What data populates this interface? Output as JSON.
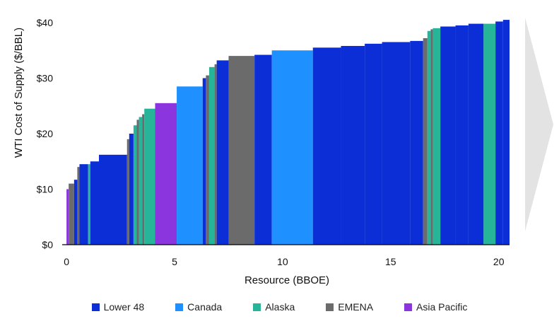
{
  "chart_data": {
    "type": "bar",
    "title": "",
    "xlabel": "Resource (BBOE)",
    "ylabel": "WTI Cost of Supply ($/BBL)",
    "xlim": [
      -0.2,
      20.5
    ],
    "ylim": [
      0,
      40
    ],
    "x_ticks": [
      {
        "value": 0,
        "label": "0"
      },
      {
        "value": 5,
        "label": "5"
      },
      {
        "value": 10,
        "label": "10"
      },
      {
        "value": 15,
        "label": "15"
      },
      {
        "value": 20,
        "label": "20"
      }
    ],
    "y_ticks": [
      {
        "value": 0,
        "label": "$0"
      },
      {
        "value": 10,
        "label": "$10"
      },
      {
        "value": 20,
        "label": "$20"
      },
      {
        "value": 30,
        "label": "$30"
      },
      {
        "value": 40,
        "label": "$40"
      }
    ],
    "grid": false,
    "legend_position": "bottom",
    "series": [
      {
        "name": "Lower 48",
        "color": "#0c2ed6"
      },
      {
        "name": "Canada",
        "color": "#1e90ff"
      },
      {
        "name": "Alaska",
        "color": "#27b59a"
      },
      {
        "name": "EMENA",
        "color": "#6b6b6b"
      },
      {
        "name": "Asia Pacific",
        "color": "#8a35dd"
      }
    ],
    "bars": [
      {
        "x0": 0.0,
        "x1": 0.1,
        "value": 10.0,
        "series": "Asia Pacific"
      },
      {
        "x0": 0.1,
        "x1": 0.35,
        "value": 11.0,
        "series": "EMENA"
      },
      {
        "x0": 0.35,
        "x1": 0.5,
        "value": 11.7,
        "series": "Lower 48"
      },
      {
        "x0": 0.5,
        "x1": 0.6,
        "value": 14.0,
        "series": "EMENA"
      },
      {
        "x0": 0.6,
        "x1": 1.0,
        "value": 14.5,
        "series": "Lower 48"
      },
      {
        "x0": 1.0,
        "x1": 1.1,
        "value": 14.5,
        "series": "Alaska"
      },
      {
        "x0": 1.1,
        "x1": 1.5,
        "value": 15.0,
        "series": "Lower 48"
      },
      {
        "x0": 1.5,
        "x1": 2.8,
        "value": 16.2,
        "series": "Lower 48"
      },
      {
        "x0": 2.8,
        "x1": 2.9,
        "value": 19.0,
        "series": "EMENA"
      },
      {
        "x0": 2.9,
        "x1": 3.1,
        "value": 20.0,
        "series": "Lower 48"
      },
      {
        "x0": 3.1,
        "x1": 3.25,
        "value": 21.5,
        "series": "Alaska"
      },
      {
        "x0": 3.25,
        "x1": 3.35,
        "value": 22.5,
        "series": "EMENA"
      },
      {
        "x0": 3.35,
        "x1": 3.5,
        "value": 23.0,
        "series": "Alaska"
      },
      {
        "x0": 3.5,
        "x1": 3.6,
        "value": 23.5,
        "series": "EMENA"
      },
      {
        "x0": 3.6,
        "x1": 4.1,
        "value": 24.5,
        "series": "Alaska"
      },
      {
        "x0": 4.1,
        "x1": 5.1,
        "value": 25.5,
        "series": "Asia Pacific"
      },
      {
        "x0": 5.1,
        "x1": 6.3,
        "value": 28.5,
        "series": "Canada"
      },
      {
        "x0": 6.3,
        "x1": 6.45,
        "value": 30.0,
        "series": "Lower 48"
      },
      {
        "x0": 6.45,
        "x1": 6.6,
        "value": 30.5,
        "series": "EMENA"
      },
      {
        "x0": 6.6,
        "x1": 6.85,
        "value": 32.0,
        "series": "Alaska"
      },
      {
        "x0": 6.85,
        "x1": 6.95,
        "value": 32.5,
        "series": "EMENA"
      },
      {
        "x0": 6.95,
        "x1": 7.5,
        "value": 33.2,
        "series": "Lower 48"
      },
      {
        "x0": 7.5,
        "x1": 8.7,
        "value": 34.0,
        "series": "EMENA"
      },
      {
        "x0": 8.7,
        "x1": 9.5,
        "value": 34.2,
        "series": "Lower 48"
      },
      {
        "x0": 9.5,
        "x1": 11.4,
        "value": 35.0,
        "series": "Canada"
      },
      {
        "x0": 11.4,
        "x1": 12.7,
        "value": 35.5,
        "series": "Lower 48"
      },
      {
        "x0": 12.7,
        "x1": 13.8,
        "value": 35.8,
        "series": "Lower 48"
      },
      {
        "x0": 13.8,
        "x1": 14.6,
        "value": 36.2,
        "series": "Lower 48"
      },
      {
        "x0": 14.6,
        "x1": 15.9,
        "value": 36.5,
        "series": "Lower 48"
      },
      {
        "x0": 15.9,
        "x1": 16.5,
        "value": 36.7,
        "series": "Lower 48"
      },
      {
        "x0": 16.5,
        "x1": 16.7,
        "value": 37.2,
        "series": "EMENA"
      },
      {
        "x0": 16.7,
        "x1": 16.85,
        "value": 38.5,
        "series": "Alaska"
      },
      {
        "x0": 16.85,
        "x1": 16.95,
        "value": 38.8,
        "series": "EMENA"
      },
      {
        "x0": 16.95,
        "x1": 17.3,
        "value": 39.0,
        "series": "Alaska"
      },
      {
        "x0": 17.3,
        "x1": 18.0,
        "value": 39.3,
        "series": "Lower 48"
      },
      {
        "x0": 18.0,
        "x1": 18.6,
        "value": 39.5,
        "series": "Lower 48"
      },
      {
        "x0": 18.6,
        "x1": 19.3,
        "value": 39.8,
        "series": "Lower 48"
      },
      {
        "x0": 19.3,
        "x1": 19.85,
        "value": 39.8,
        "series": "Alaska"
      },
      {
        "x0": 19.85,
        "x1": 20.2,
        "value": 40.2,
        "series": "Lower 48"
      },
      {
        "x0": 20.2,
        "x1": 20.5,
        "value": 40.5,
        "series": "Lower 48"
      }
    ]
  }
}
